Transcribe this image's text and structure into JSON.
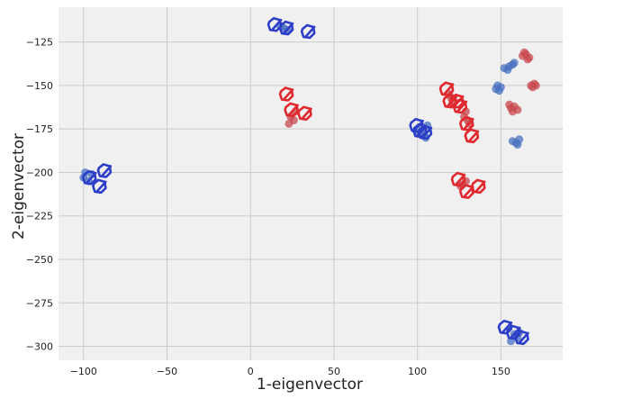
{
  "chart_data": {
    "type": "scatter",
    "title": "",
    "xlabel": "1-eigenvector",
    "ylabel": "2-eigenvector",
    "xlim": [
      -115,
      187
    ],
    "ylim": [
      -308,
      -105
    ],
    "xticks": [
      -100,
      -50,
      0,
      50,
      100,
      150
    ],
    "yticks": [
      -125,
      -150,
      -175,
      -200,
      -225,
      -250,
      -275,
      -300
    ],
    "xtick_labels": [
      "−100",
      "−50",
      "0",
      "50",
      "100",
      "150"
    ],
    "ytick_labels": [
      "−125",
      "−150",
      "−175",
      "−200",
      "−225",
      "−250",
      "−275",
      "−300"
    ],
    "grid": true,
    "background": "#f0f0f0",
    "colors": {
      "blue_dots": "#4a72c0",
      "red_dots": "#c84a50",
      "blue_scribble": "#2d3ec8",
      "red_scribble": "#e0282e"
    },
    "series": [
      {
        "style": "blue_dots",
        "points": [
          [
            -100,
            -203
          ],
          [
            -97,
            -205
          ],
          [
            -95,
            -201
          ],
          [
            -99,
            -200
          ],
          [
            20,
            -117
          ],
          [
            22,
            -118
          ],
          [
            18,
            -116
          ],
          [
            103,
            -175
          ],
          [
            104,
            -178
          ],
          [
            106,
            -173
          ],
          [
            101,
            -177
          ],
          [
            105,
            -180
          ],
          [
            152,
            -140
          ],
          [
            155,
            -139
          ],
          [
            157,
            -138
          ],
          [
            158,
            -137
          ],
          [
            154,
            -141
          ],
          [
            147,
            -152
          ],
          [
            148,
            -150
          ],
          [
            150,
            -151
          ],
          [
            149,
            -153
          ],
          [
            157,
            -182
          ],
          [
            159,
            -183
          ],
          [
            161,
            -181
          ],
          [
            160,
            -184
          ],
          [
            158,
            -293
          ],
          [
            160,
            -295
          ],
          [
            156,
            -297
          ],
          [
            161,
            -292
          ]
        ]
      },
      {
        "style": "red_dots",
        "points": [
          [
            24,
            -168
          ],
          [
            26,
            -170
          ],
          [
            23,
            -172
          ],
          [
            27,
            -165
          ],
          [
            120,
            -157
          ],
          [
            121,
            -160
          ],
          [
            119,
            -155
          ],
          [
            128,
            -168
          ],
          [
            130,
            -170
          ],
          [
            129,
            -165
          ],
          [
            131,
            -172
          ],
          [
            127,
            -207
          ],
          [
            129,
            -205
          ],
          [
            126,
            -208
          ],
          [
            156,
            -163
          ],
          [
            158,
            -162
          ],
          [
            157,
            -165
          ],
          [
            155,
            -161
          ],
          [
            160,
            -164
          ],
          [
            163,
            -133
          ],
          [
            165,
            -132
          ],
          [
            167,
            -134
          ],
          [
            164,
            -131
          ],
          [
            166,
            -135
          ],
          [
            168,
            -150
          ],
          [
            170,
            -149
          ],
          [
            169,
            -151
          ],
          [
            171,
            -150
          ]
        ]
      },
      {
        "style": "blue_scribble",
        "points": [
          [
            -96,
            -204
          ],
          [
            -87,
            -200
          ],
          [
            -90,
            -209
          ],
          [
            15,
            -116
          ],
          [
            22,
            -118
          ],
          [
            35,
            -120
          ],
          [
            102,
            -177
          ],
          [
            100,
            -174
          ],
          [
            105,
            -178
          ],
          [
            158,
            -293
          ],
          [
            153,
            -290
          ],
          [
            163,
            -296
          ]
        ]
      },
      {
        "style": "red_scribble",
        "points": [
          [
            25,
            -165
          ],
          [
            22,
            -156
          ],
          [
            33,
            -167
          ],
          [
            120,
            -160
          ],
          [
            118,
            -153
          ],
          [
            124,
            -160
          ],
          [
            130,
            -173
          ],
          [
            126,
            -163
          ],
          [
            133,
            -180
          ],
          [
            125,
            -205
          ],
          [
            130,
            -212
          ],
          [
            137,
            -209
          ]
        ]
      }
    ]
  }
}
